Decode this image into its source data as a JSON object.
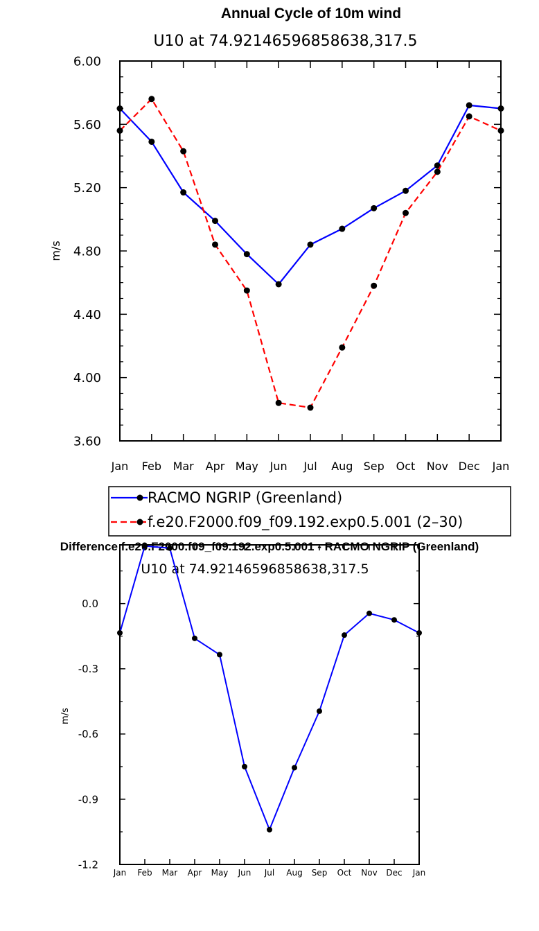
{
  "chart_data": [
    {
      "type": "line",
      "title": "Annual Cycle of 10m wind",
      "subtitle": "U10  at  74.92146596858638,317.5",
      "xlabel": "",
      "ylabel": "m/s",
      "categories": [
        "Jan",
        "Feb",
        "Mar",
        "Apr",
        "May",
        "Jun",
        "Jul",
        "Aug",
        "Sep",
        "Oct",
        "Nov",
        "Dec",
        "Jan"
      ],
      "ylim": [
        3.6,
        6.0
      ],
      "yticks": [
        "6.00",
        "5.60",
        "5.20",
        "4.80",
        "4.40",
        "4.00",
        "3.60"
      ],
      "grid": false,
      "legend_position": "bottom",
      "series": [
        {
          "name": "RACMO NGRIP (Greenland)",
          "style": "solid",
          "color": "#0000ff",
          "values": [
            5.7,
            5.49,
            5.17,
            4.99,
            4.78,
            4.59,
            4.84,
            4.94,
            5.07,
            5.18,
            5.34,
            5.72,
            5.7
          ]
        },
        {
          "name": "f.e20.F2000.f09_f09.192.exp0.5.001 (2–30)",
          "style": "dashed",
          "color": "#ff0000",
          "values": [
            5.56,
            5.76,
            5.43,
            4.84,
            4.55,
            3.84,
            3.81,
            4.19,
            4.58,
            5.04,
            5.3,
            5.65,
            5.56
          ]
        }
      ]
    },
    {
      "type": "line",
      "title": "Difference f.e20.F2000.f09_f09.192.exp0.5.001 - RACMO NGRIP (Greenland)",
      "subtitle": "U10  at  74.92146596858638,317.5",
      "xlabel": "",
      "ylabel": "m/s",
      "categories": [
        "Jan",
        "Feb",
        "Mar",
        "Apr",
        "May",
        "Jun",
        "Jul",
        "Aug",
        "Sep",
        "Oct",
        "Nov",
        "Dec",
        "Jan"
      ],
      "ylim": [
        -1.2,
        0.27
      ],
      "yticks": [
        "0.0",
        "-0.3",
        "-0.6",
        "-0.9",
        "-1.2"
      ],
      "grid": false,
      "series": [
        {
          "color": "#0000ff",
          "values": [
            -0.135,
            0.265,
            0.255,
            -0.16,
            -0.235,
            -0.75,
            -1.04,
            -0.755,
            -0.495,
            -0.145,
            -0.045,
            -0.075,
            -0.135
          ]
        }
      ]
    }
  ]
}
